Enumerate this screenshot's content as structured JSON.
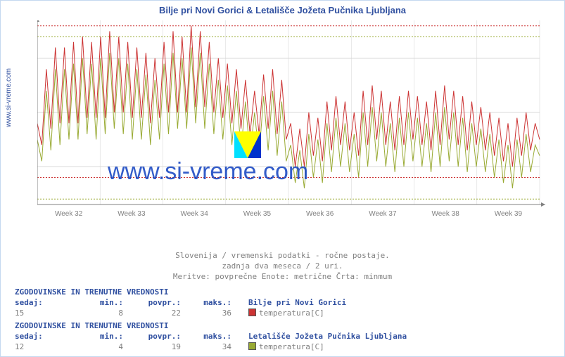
{
  "title": "Bilje pri Novi Gorici & Letališče Jožeta Pučnika Ljubljana",
  "ylabel_left": "www.si-vreme.com",
  "watermark_text": "www.si-vreme.com",
  "chart": {
    "type": "line",
    "background_color": "#ffffff",
    "grid_color": "#d8d8d8",
    "axis_color": "#808080",
    "x": {
      "labels": [
        "Week 32",
        "Week 33",
        "Week 34",
        "Week 35",
        "Week 36",
        "Week 37",
        "Week 38",
        "Week 39"
      ],
      "label_color": "#808080",
      "label_fontsize": 10,
      "range": [
        0,
        56
      ]
    },
    "y": {
      "ticks": [
        10,
        20,
        30
      ],
      "lim": [
        3,
        37
      ],
      "label_color": "#808080",
      "label_fontsize": 10
    },
    "ref_lines": [
      {
        "y": 36,
        "color": "#cc3333",
        "dash": "2,2"
      },
      {
        "y": 8,
        "color": "#cc3333",
        "dash": "2,2"
      },
      {
        "y": 34,
        "color": "#99aa33",
        "dash": "2,2"
      },
      {
        "y": 4,
        "color": "#99aa33",
        "dash": "2,2"
      }
    ],
    "series": [
      {
        "name": "Bilje pri Novi Gorici",
        "color": "#cc3333",
        "width": 1,
        "y": [
          18,
          14,
          28,
          17,
          32,
          18,
          32,
          18,
          33,
          18,
          34,
          19,
          33,
          19,
          34,
          19,
          35,
          20,
          34,
          20,
          33,
          19,
          32,
          19,
          31,
          18,
          30,
          19,
          33,
          20,
          35,
          20,
          34,
          20,
          36,
          21,
          35,
          21,
          33,
          20,
          30,
          19,
          29,
          18,
          28,
          17,
          26,
          16,
          24,
          16,
          27,
          17,
          28,
          16,
          26,
          15,
          18,
          10,
          17,
          10,
          20,
          12,
          19,
          11,
          22,
          13,
          23,
          14,
          22,
          13,
          20,
          12,
          24,
          14,
          25,
          15,
          24,
          14,
          22,
          13,
          23,
          14,
          24,
          15,
          23,
          14,
          22,
          13,
          24,
          14,
          25,
          15,
          24,
          14,
          23,
          13,
          22,
          14,
          21,
          13,
          20,
          12,
          19,
          11,
          18,
          10,
          19,
          12,
          20,
          13,
          18,
          15
        ]
      },
      {
        "name": "Letališče Jožeta Pučnika Ljubljana",
        "color": "#99aa33",
        "width": 1,
        "y": [
          15,
          11,
          24,
          13,
          28,
          14,
          28,
          15,
          29,
          15,
          30,
          16,
          29,
          15,
          30,
          16,
          31,
          17,
          30,
          16,
          29,
          15,
          28,
          15,
          27,
          14,
          26,
          15,
          29,
          16,
          31,
          17,
          30,
          17,
          32,
          18,
          31,
          17,
          29,
          16,
          26,
          15,
          25,
          14,
          24,
          13,
          22,
          12,
          20,
          12,
          23,
          13,
          24,
          12,
          22,
          11,
          14,
          7,
          13,
          6,
          16,
          8,
          15,
          7,
          18,
          9,
          19,
          10,
          18,
          9,
          16,
          8,
          20,
          10,
          21,
          11,
          20,
          10,
          18,
          9,
          19,
          10,
          20,
          11,
          19,
          10,
          18,
          9,
          20,
          10,
          21,
          11,
          20,
          10,
          19,
          9,
          18,
          10,
          17,
          9,
          16,
          8,
          15,
          7,
          14,
          6,
          15,
          8,
          16,
          9,
          14,
          12
        ]
      }
    ]
  },
  "caption": {
    "line1": "Slovenija / vremenski podatki - ročne postaje.",
    "line2": "zadnja dva meseca / 2 uri.",
    "line3": "Meritve: povprečne  Enote: metrične  Črta: minmum"
  },
  "stats": [
    {
      "heading": "ZGODOVINSKE IN TRENUTNE VREDNOSTI",
      "headers": {
        "now": "sedaj:",
        "min": "min.:",
        "avg": "povpr.:",
        "max": "maks.:"
      },
      "location": "Bilje pri Novi Gorici",
      "measure": "temperatura[C]",
      "swatch": "#cc3333",
      "values": {
        "now": "15",
        "min": "8",
        "avg": "22",
        "max": "36"
      }
    },
    {
      "heading": "ZGODOVINSKE IN TRENUTNE VREDNOSTI",
      "headers": {
        "now": "sedaj:",
        "min": "min.:",
        "avg": "povpr.:",
        "max": "maks.:"
      },
      "location": "Letališče Jožeta Pučnika Ljubljana",
      "measure": "temperatura[C]",
      "swatch": "#99aa33",
      "values": {
        "now": "12",
        "min": "4",
        "avg": "19",
        "max": "34"
      }
    }
  ]
}
